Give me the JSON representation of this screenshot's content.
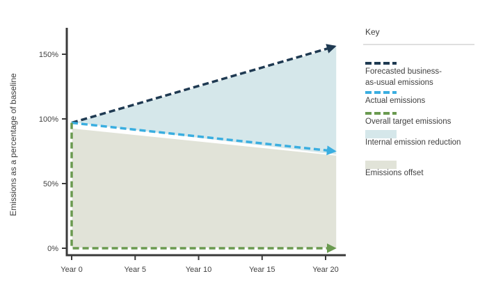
{
  "chart_data": {
    "type": "area",
    "ylabel": "Emissions as a percentage of baseline",
    "xlabel": "",
    "categories": [
      "Year 0",
      "Year 5",
      "Year 10",
      "Year 15",
      "Year 20"
    ],
    "x": [
      0,
      5,
      10,
      15,
      20
    ],
    "ylim": [
      0,
      170
    ],
    "yticks": [
      0,
      50,
      100,
      150
    ],
    "ytick_labels": [
      "0%",
      "50%",
      "100%",
      "150%"
    ],
    "series": [
      {
        "name": "Forecasted business-as-usual emissions",
        "style": "dashed-arrow",
        "color": "#1f3a52",
        "x": [
          0,
          20
        ],
        "values": [
          97,
          156
        ]
      },
      {
        "name": "Actual emissions",
        "style": "dashed-arrow",
        "color": "#3aaee0",
        "x": [
          0,
          20
        ],
        "values": [
          97,
          75
        ]
      },
      {
        "name": "Overall target emissions",
        "style": "dashed-arrow",
        "color": "#6a9a50",
        "x": [
          0,
          0,
          20
        ],
        "values": [
          97,
          0,
          0
        ]
      },
      {
        "name": "Internal emission reduction",
        "style": "area",
        "color": "#d5e7ea",
        "x": [
          0,
          20
        ],
        "upper": [
          97,
          156
        ],
        "lower": [
          97,
          72
        ]
      },
      {
        "name": "Emissions offset",
        "style": "area",
        "color": "#e1e3d8",
        "x": [
          0,
          20
        ],
        "upper": [
          93,
          72
        ],
        "lower": [
          0,
          0
        ]
      }
    ],
    "legend": {
      "title": "Key",
      "position": "right",
      "items": [
        {
          "lines": [
            "Forecasted business-",
            "as-usual emissions"
          ],
          "kind": "dashed",
          "color": "#1f3a52"
        },
        {
          "lines": [
            "Actual emissions"
          ],
          "kind": "dashed",
          "color": "#3aaee0"
        },
        {
          "lines": [
            "Overall target emissions"
          ],
          "kind": "dashed",
          "color": "#6a9a50"
        },
        {
          "lines": [
            "Internal emission reduction"
          ],
          "kind": "swatch",
          "color": "#d5e7ea"
        },
        {
          "lines": [
            "Emissions offset"
          ],
          "kind": "swatch",
          "color": "#e1e3d8"
        }
      ]
    }
  }
}
